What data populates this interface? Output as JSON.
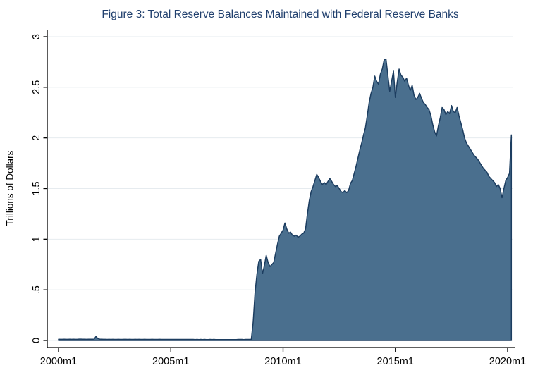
{
  "chart_data": {
    "type": "area",
    "title": "Figure 3: Total Reserve Balances Maintained with Federal Reserve Banks",
    "xlabel": "",
    "ylabel": "Trillions of Dollars",
    "x_unit": "month",
    "x_first": "2000m1",
    "x_last": "2020m3",
    "x_tick_labels": [
      "2000m1",
      "2005m1",
      "2010m1",
      "2015m1",
      "2020m1"
    ],
    "x_tick_months": [
      0,
      60,
      120,
      180,
      240
    ],
    "y_ticks": [
      0,
      0.5,
      1,
      1.5,
      2,
      2.5,
      3
    ],
    "y_tick_labels": [
      "0",
      ".5",
      "1",
      "1.5",
      "2",
      "2.5",
      "3"
    ],
    "ylim": [
      0,
      3
    ],
    "grid": true,
    "legend": "none",
    "colors": {
      "area_fill": "#4a6f8e",
      "area_line": "#1c3d60",
      "grid_line": "#e6ebef",
      "axis_line": "#000000",
      "title_text": "#21406e",
      "tick_text": "#000000"
    },
    "series": [
      {
        "name": "Total reserve balances maintained with Federal Reserve Banks",
        "start": "2000m1",
        "frequency": "monthly",
        "values": [
          0.012,
          0.011,
          0.011,
          0.012,
          0.011,
          0.011,
          0.012,
          0.011,
          0.012,
          0.011,
          0.011,
          0.013,
          0.013,
          0.012,
          0.012,
          0.011,
          0.012,
          0.012,
          0.012,
          0.013,
          0.04,
          0.02,
          0.013,
          0.012,
          0.011,
          0.011,
          0.01,
          0.011,
          0.01,
          0.011,
          0.01,
          0.01,
          0.011,
          0.01,
          0.01,
          0.011,
          0.011,
          0.01,
          0.011,
          0.01,
          0.01,
          0.011,
          0.01,
          0.011,
          0.01,
          0.01,
          0.011,
          0.01,
          0.01,
          0.01,
          0.011,
          0.01,
          0.01,
          0.01,
          0.011,
          0.01,
          0.01,
          0.01,
          0.01,
          0.01,
          0.01,
          0.01,
          0.01,
          0.01,
          0.01,
          0.01,
          0.01,
          0.01,
          0.01,
          0.01,
          0.01,
          0.01,
          0.01,
          0.009,
          0.01,
          0.009,
          0.01,
          0.009,
          0.01,
          0.009,
          0.009,
          0.01,
          0.009,
          0.01,
          0.009,
          0.009,
          0.009,
          0.009,
          0.009,
          0.009,
          0.009,
          0.009,
          0.009,
          0.009,
          0.009,
          0.009,
          0.01,
          0.01,
          0.01,
          0.009,
          0.01,
          0.01,
          0.01,
          0.01,
          0.18,
          0.47,
          0.65,
          0.78,
          0.8,
          0.66,
          0.74,
          0.84,
          0.77,
          0.73,
          0.75,
          0.77,
          0.86,
          0.95,
          1.03,
          1.06,
          1.09,
          1.16,
          1.1,
          1.06,
          1.07,
          1.04,
          1.03,
          1.04,
          1.02,
          1.03,
          1.05,
          1.06,
          1.1,
          1.25,
          1.38,
          1.47,
          1.52,
          1.58,
          1.64,
          1.61,
          1.57,
          1.54,
          1.56,
          1.54,
          1.57,
          1.6,
          1.57,
          1.54,
          1.52,
          1.53,
          1.5,
          1.47,
          1.46,
          1.48,
          1.46,
          1.48,
          1.55,
          1.58,
          1.65,
          1.72,
          1.8,
          1.88,
          1.95,
          2.03,
          2.1,
          2.22,
          2.35,
          2.44,
          2.5,
          2.61,
          2.56,
          2.53,
          2.63,
          2.68,
          2.77,
          2.78,
          2.62,
          2.46,
          2.56,
          2.66,
          2.4,
          2.55,
          2.68,
          2.62,
          2.6,
          2.56,
          2.59,
          2.52,
          2.47,
          2.52,
          2.42,
          2.38,
          2.4,
          2.44,
          2.39,
          2.35,
          2.33,
          2.3,
          2.28,
          2.22,
          2.13,
          2.06,
          2.02,
          2.12,
          2.2,
          2.3,
          2.28,
          2.23,
          2.26,
          2.24,
          2.32,
          2.26,
          2.25,
          2.3,
          2.22,
          2.15,
          2.08,
          2.0,
          1.95,
          1.92,
          1.89,
          1.86,
          1.83,
          1.81,
          1.79,
          1.76,
          1.73,
          1.7,
          1.68,
          1.66,
          1.62,
          1.6,
          1.58,
          1.56,
          1.52,
          1.54,
          1.5,
          1.41,
          1.5,
          1.58,
          1.61,
          1.65,
          2.03
        ]
      }
    ]
  }
}
